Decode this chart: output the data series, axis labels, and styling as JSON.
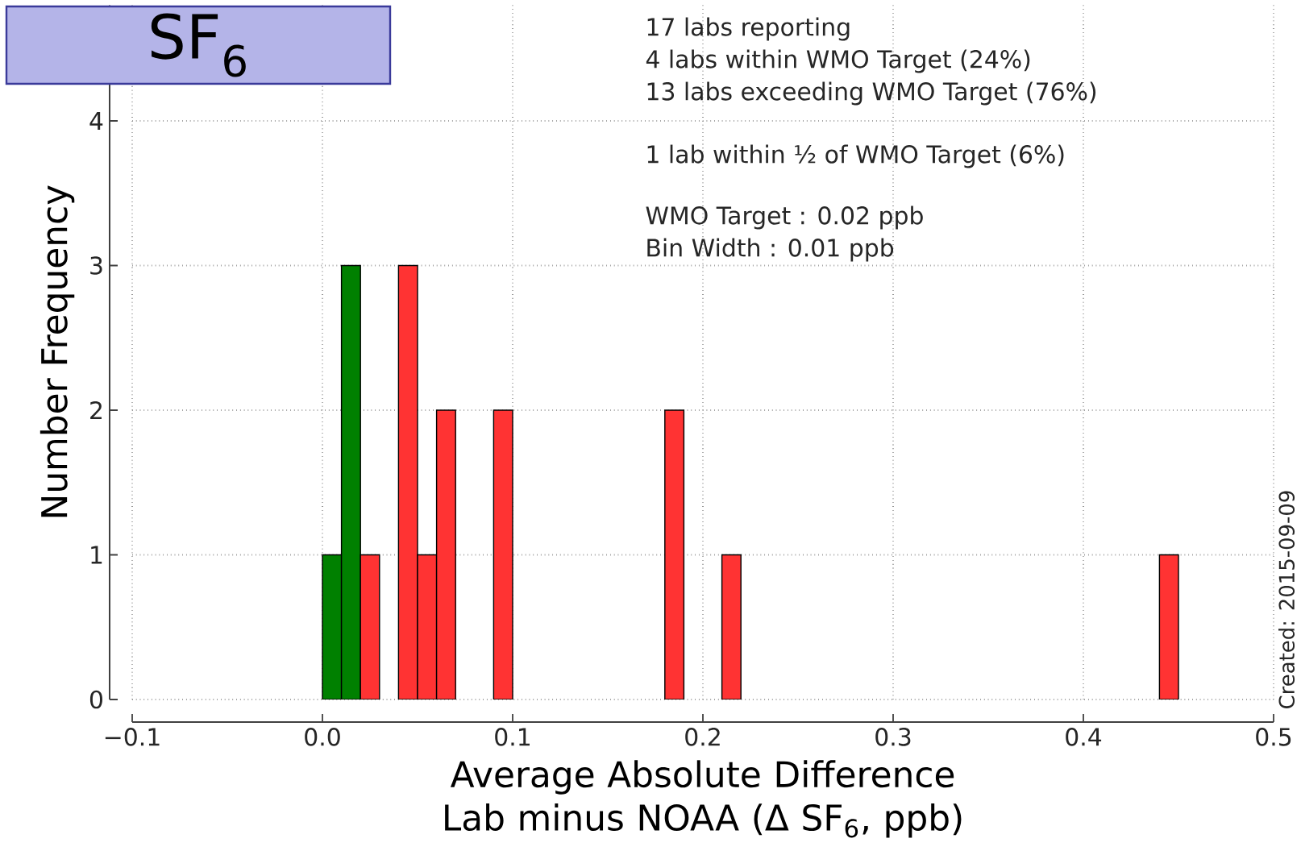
{
  "chart_data": {
    "type": "histogram",
    "title": "SF$_{6}$",
    "xlabel": "Average Absolute Difference Lab minus NOAA (Δ SF$_{6}$, ppb)",
    "ylabel": "Number Frequency",
    "bins": [
      0,
      0.01,
      0.02,
      0.03,
      0.04,
      0.05,
      0.06,
      0.07,
      0.08,
      0.09,
      0.1,
      0.11,
      0.12,
      0.13,
      0.14,
      0.15,
      0.16,
      0.17,
      0.18,
      0.19,
      0.2,
      0.21,
      0.22,
      0.23,
      0.24,
      0.25,
      0.26,
      0.27,
      0.28,
      0.29,
      0.3,
      0.31,
      0.32,
      0.33,
      0.34,
      0.35,
      0.36,
      0.37,
      0.38,
      0.39,
      0.4,
      0.41,
      0.42,
      0.43,
      0.44,
      0.45
    ],
    "series": [
      {
        "color": "#008000",
        "values": [
          1,
          3,
          0,
          0,
          0,
          0,
          0,
          0,
          0,
          0,
          0,
          0,
          0,
          0,
          0,
          0,
          0,
          0,
          0,
          0,
          0,
          0,
          0,
          0,
          0,
          0,
          0,
          0,
          0,
          0,
          0,
          0,
          0,
          0,
          0,
          0,
          0,
          0,
          0,
          0,
          0,
          0,
          0,
          0,
          0
        ]
      },
      {
        "color": "#ff3333",
        "values": [
          0,
          0,
          1,
          0,
          3,
          1,
          2,
          0,
          0,
          2,
          0,
          0,
          0,
          0,
          0,
          0,
          0,
          0,
          2,
          0,
          0,
          1,
          0,
          0,
          0,
          0,
          0,
          0,
          0,
          0,
          0,
          0,
          0,
          0,
          0,
          0,
          0,
          0,
          0,
          0,
          0,
          0,
          0,
          0,
          1
        ]
      }
    ],
    "xlim": [
      -0.1,
      0.5
    ],
    "ylim": [
      0,
      4.8
    ],
    "xticks": [
      {
        "value": -0.1,
        "label": "−0.1"
      },
      {
        "value": 0,
        "label": "0.0"
      },
      0.1,
      0.2,
      0.3,
      0.4,
      0.5
    ],
    "yticks": [
      0,
      1,
      2,
      3,
      4
    ],
    "grid": true,
    "annotations": [
      "17 labs reporting",
      "4 labs within WMO Target (24%)",
      "13 labs exceeding WMO Target (76%)",
      "1 lab within ½ of WMO Target (6%)",
      "WMO Target : 0.02 ppb",
      "Bin Width : 0.01 ppb",
      "Created: 2015-09-09"
    ]
  }
}
